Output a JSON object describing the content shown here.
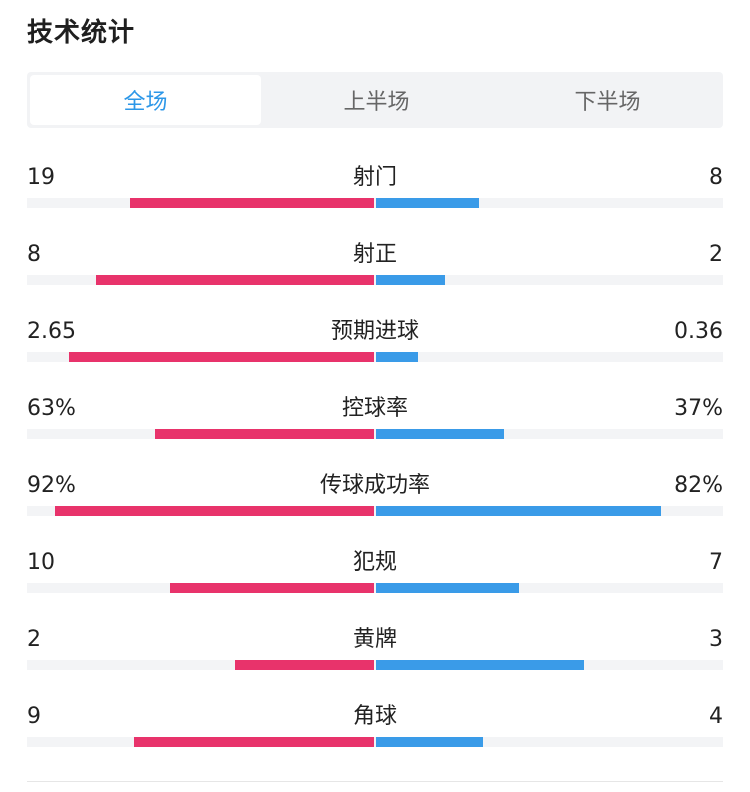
{
  "section_title": "技术统计",
  "tabs": [
    {
      "label": "全场",
      "active": true
    },
    {
      "label": "上半场",
      "active": false
    },
    {
      "label": "下半场",
      "active": false
    }
  ],
  "colors": {
    "home": "#e8336b",
    "away": "#3a9be8",
    "active_tab": "#2c97e8"
  },
  "stats": [
    {
      "label": "射门",
      "home": "19",
      "away": "8",
      "home_share": 0.704,
      "away_share": 0.296
    },
    {
      "label": "射正",
      "home": "8",
      "away": "2",
      "home_share": 0.8,
      "away_share": 0.2
    },
    {
      "label": "预期进球",
      "home": "2.65",
      "away": "0.36",
      "home_share": 0.88,
      "away_share": 0.12
    },
    {
      "label": "控球率",
      "home": "63%",
      "away": "37%",
      "home_share": 0.63,
      "away_share": 0.37
    },
    {
      "label": "传球成功率",
      "home": "92%",
      "away": "82%",
      "home_share": 0.92,
      "away_share": 0.82
    },
    {
      "label": "犯规",
      "home": "10",
      "away": "7",
      "home_share": 0.588,
      "away_share": 0.412
    },
    {
      "label": "黄牌",
      "home": "2",
      "away": "3",
      "home_share": 0.4,
      "away_share": 0.6
    },
    {
      "label": "角球",
      "home": "9",
      "away": "4",
      "home_share": 0.692,
      "away_share": 0.308
    }
  ]
}
